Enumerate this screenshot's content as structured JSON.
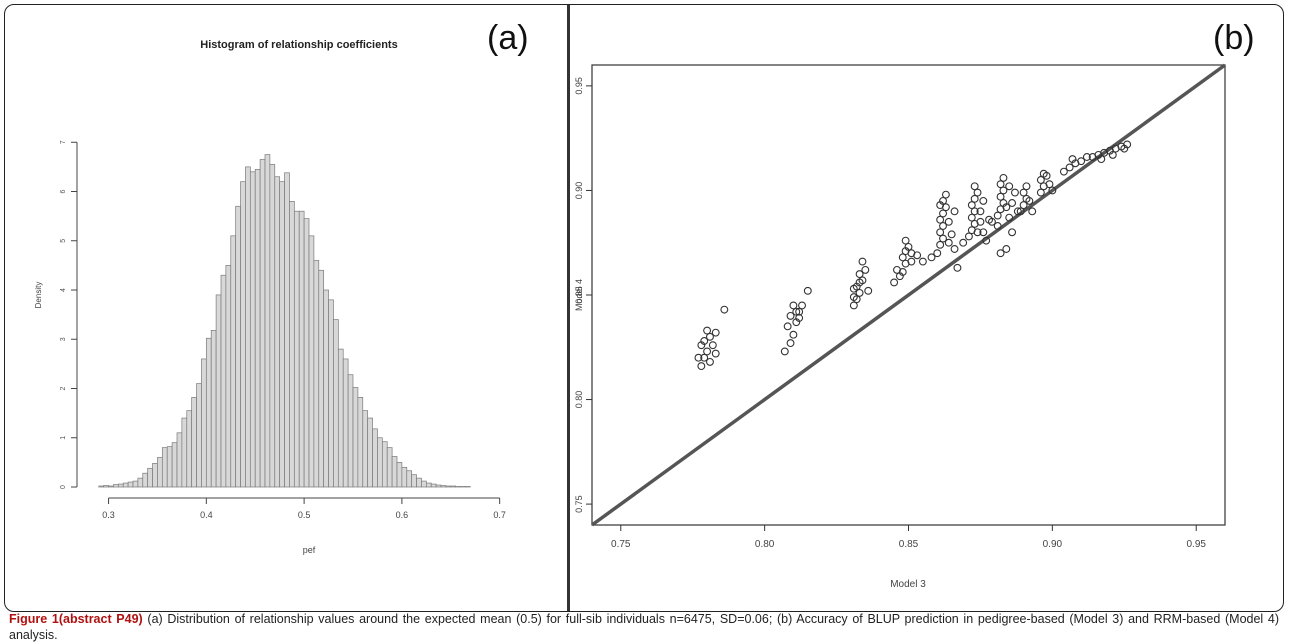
{
  "chart_data": [
    {
      "id": "a",
      "panel_label": "(a)",
      "type": "bar",
      "title": "Histogram of relationship coefficients",
      "xlabel": "pef",
      "ylabel": "Density",
      "xlim": [
        0.28,
        0.73
      ],
      "ylim": [
        0,
        8
      ],
      "xticks": [
        "0.3",
        "0.4",
        "0.5",
        "0.6",
        "0.7"
      ],
      "yticks": [
        "0",
        "1",
        "2",
        "3",
        "4",
        "5",
        "6",
        "7"
      ],
      "bin_start": 0.29,
      "bin_width": 0.005,
      "values": [
        0.02,
        0.03,
        0.02,
        0.05,
        0.06,
        0.08,
        0.1,
        0.12,
        0.18,
        0.28,
        0.38,
        0.48,
        0.6,
        0.8,
        0.82,
        0.9,
        1.1,
        1.4,
        1.55,
        1.82,
        2.1,
        2.6,
        3.02,
        3.18,
        3.9,
        4.3,
        4.5,
        5.1,
        5.7,
        6.2,
        6.5,
        6.4,
        6.45,
        6.65,
        6.75,
        6.55,
        6.3,
        6.2,
        6.38,
        5.8,
        5.6,
        5.6,
        5.45,
        5.1,
        4.6,
        4.4,
        4.0,
        3.8,
        3.4,
        2.8,
        2.6,
        2.28,
        2.02,
        1.82,
        1.55,
        1.4,
        1.18,
        1.0,
        0.92,
        0.8,
        0.62,
        0.5,
        0.4,
        0.33,
        0.25,
        0.18,
        0.12,
        0.08,
        0.06,
        0.04,
        0.03,
        0.02,
        0.02,
        0.01,
        0.01,
        0.01
      ],
      "legend": "none",
      "grid": false,
      "bar_color": "#d8d8d8",
      "edge_color": "#7a7a7a"
    },
    {
      "id": "b",
      "panel_label": "(b)",
      "type": "scatter",
      "title": "",
      "xlabel": "Model 3",
      "ylabel": "Model 4",
      "xlim": [
        0.74,
        0.96
      ],
      "ylim": [
        0.74,
        0.96
      ],
      "xticks": [
        "0.75",
        "0.80",
        "0.85",
        "0.90",
        "0.95"
      ],
      "yticks": [
        "0.75",
        "0.80",
        "0.85",
        "0.90",
        "0.95"
      ],
      "reference_line": {
        "type": "y=x",
        "color": "#555555"
      },
      "points": [
        [
          0.778,
          0.816
        ],
        [
          0.779,
          0.82
        ],
        [
          0.781,
          0.818
        ],
        [
          0.78,
          0.823
        ],
        [
          0.778,
          0.826
        ],
        [
          0.782,
          0.826
        ],
        [
          0.779,
          0.828
        ],
        [
          0.781,
          0.83
        ],
        [
          0.783,
          0.832
        ],
        [
          0.78,
          0.833
        ],
        [
          0.777,
          0.82
        ],
        [
          0.783,
          0.822
        ],
        [
          0.786,
          0.843
        ],
        [
          0.807,
          0.823
        ],
        [
          0.809,
          0.827
        ],
        [
          0.81,
          0.831
        ],
        [
          0.808,
          0.835
        ],
        [
          0.811,
          0.837
        ],
        [
          0.809,
          0.84
        ],
        [
          0.811,
          0.842
        ],
        [
          0.812,
          0.839
        ],
        [
          0.813,
          0.845
        ],
        [
          0.815,
          0.852
        ],
        [
          0.81,
          0.845
        ],
        [
          0.812,
          0.842
        ],
        [
          0.831,
          0.845
        ],
        [
          0.832,
          0.848
        ],
        [
          0.833,
          0.851
        ],
        [
          0.832,
          0.854
        ],
        [
          0.834,
          0.857
        ],
        [
          0.833,
          0.86
        ],
        [
          0.835,
          0.862
        ],
        [
          0.834,
          0.866
        ],
        [
          0.831,
          0.853
        ],
        [
          0.833,
          0.856
        ],
        [
          0.836,
          0.852
        ],
        [
          0.831,
          0.849
        ],
        [
          0.845,
          0.856
        ],
        [
          0.847,
          0.859
        ],
        [
          0.848,
          0.861
        ],
        [
          0.849,
          0.865
        ],
        [
          0.848,
          0.868
        ],
        [
          0.849,
          0.871
        ],
        [
          0.85,
          0.873
        ],
        [
          0.849,
          0.876
        ],
        [
          0.846,
          0.862
        ],
        [
          0.851,
          0.866
        ],
        [
          0.853,
          0.869
        ],
        [
          0.855,
          0.866
        ],
        [
          0.851,
          0.87
        ],
        [
          0.858,
          0.868
        ],
        [
          0.86,
          0.87
        ],
        [
          0.861,
          0.874
        ],
        [
          0.862,
          0.877
        ],
        [
          0.861,
          0.88
        ],
        [
          0.862,
          0.883
        ],
        [
          0.861,
          0.886
        ],
        [
          0.862,
          0.889
        ],
        [
          0.863,
          0.892
        ],
        [
          0.862,
          0.895
        ],
        [
          0.863,
          0.898
        ],
        [
          0.864,
          0.875
        ],
        [
          0.866,
          0.872
        ],
        [
          0.867,
          0.863
        ],
        [
          0.865,
          0.879
        ],
        [
          0.864,
          0.885
        ],
        [
          0.866,
          0.89
        ],
        [
          0.861,
          0.893
        ],
        [
          0.869,
          0.875
        ],
        [
          0.871,
          0.878
        ],
        [
          0.872,
          0.881
        ],
        [
          0.873,
          0.884
        ],
        [
          0.872,
          0.887
        ],
        [
          0.873,
          0.89
        ],
        [
          0.872,
          0.893
        ],
        [
          0.873,
          0.896
        ],
        [
          0.874,
          0.899
        ],
        [
          0.873,
          0.902
        ],
        [
          0.875,
          0.885
        ],
        [
          0.876,
          0.88
        ],
        [
          0.877,
          0.876
        ],
        [
          0.875,
          0.89
        ],
        [
          0.876,
          0.895
        ],
        [
          0.874,
          0.88
        ],
        [
          0.878,
          0.886
        ],
        [
          0.879,
          0.885
        ],
        [
          0.881,
          0.888
        ],
        [
          0.882,
          0.891
        ],
        [
          0.883,
          0.894
        ],
        [
          0.882,
          0.897
        ],
        [
          0.883,
          0.9
        ],
        [
          0.882,
          0.903
        ],
        [
          0.883,
          0.906
        ],
        [
          0.884,
          0.892
        ],
        [
          0.885,
          0.887
        ],
        [
          0.886,
          0.894
        ],
        [
          0.887,
          0.899
        ],
        [
          0.885,
          0.902
        ],
        [
          0.881,
          0.883
        ],
        [
          0.884,
          0.872
        ],
        [
          0.882,
          0.87
        ],
        [
          0.886,
          0.88
        ],
        [
          0.888,
          0.89
        ],
        [
          0.889,
          0.89
        ],
        [
          0.89,
          0.893
        ],
        [
          0.891,
          0.896
        ],
        [
          0.89,
          0.899
        ],
        [
          0.891,
          0.902
        ],
        [
          0.892,
          0.895
        ],
        [
          0.893,
          0.89
        ],
        [
          0.896,
          0.899
        ],
        [
          0.897,
          0.902
        ],
        [
          0.896,
          0.905
        ],
        [
          0.898,
          0.907
        ],
        [
          0.897,
          0.908
        ],
        [
          0.899,
          0.903
        ],
        [
          0.9,
          0.9
        ],
        [
          0.904,
          0.909
        ],
        [
          0.906,
          0.911
        ],
        [
          0.908,
          0.913
        ],
        [
          0.91,
          0.914
        ],
        [
          0.907,
          0.915
        ],
        [
          0.912,
          0.916
        ],
        [
          0.914,
          0.916
        ],
        [
          0.916,
          0.917
        ],
        [
          0.918,
          0.918
        ],
        [
          0.92,
          0.919
        ],
        [
          0.922,
          0.92
        ],
        [
          0.924,
          0.921
        ],
        [
          0.926,
          0.922
        ],
        [
          0.917,
          0.915
        ],
        [
          0.921,
          0.917
        ],
        [
          0.925,
          0.92
        ]
      ],
      "legend": "none",
      "grid": false,
      "marker": "open-circle",
      "marker_color": "#333333"
    }
  ],
  "caption": {
    "label": "Figure 1(abstract P49)",
    "text": "(a) Distribution of relationship values around the expected mean (0.5) for full-sib individuals n=6475, SD=0.06; (b) Accuracy of BLUP prediction in pedigree-based (Model 3) and RRM-based (Model 4) analysis."
  }
}
